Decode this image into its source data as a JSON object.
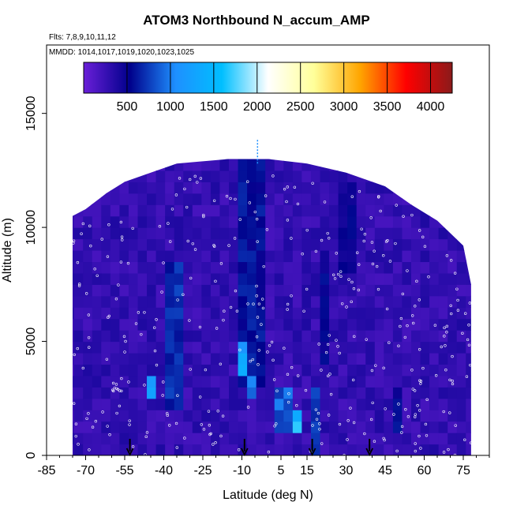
{
  "chart_data": {
    "type": "heatmap",
    "title": "ATOM3 Northbound N_accum_AMP",
    "flights_note": "Flts: 7,8,9,10,11,12",
    "mmdd_note": "MMDD: 1014,1017,1019,1020,1023,1025",
    "xlabel": "Latitude (deg N)",
    "ylabel": "Altitude (m)",
    "xlim": [
      -85,
      85
    ],
    "ylim": [
      0,
      18000
    ],
    "x_ticks": [
      -85,
      -70,
      -55,
      -40,
      -25,
      -10,
      5,
      15,
      30,
      45,
      60,
      75
    ],
    "y_ticks": [
      0,
      5000,
      10000,
      15000
    ],
    "colorbar": {
      "range": [
        0,
        4250
      ],
      "ticks": [
        500,
        1000,
        1500,
        2000,
        2500,
        3000,
        3500,
        4000
      ],
      "colors": [
        "#6a1fd8",
        "#00008b",
        "#1e90ff",
        "#00bfff",
        "#ffffff",
        "#ffff99",
        "#ffa500",
        "#ff0000",
        "#8b1a1a"
      ]
    },
    "coverage_top_profile": [
      {
        "lat": -75,
        "alt": 10500
      },
      {
        "lat": -70,
        "alt": 10800
      },
      {
        "lat": -62,
        "alt": 11500
      },
      {
        "lat": -55,
        "alt": 12000
      },
      {
        "lat": -45,
        "alt": 12400
      },
      {
        "lat": -35,
        "alt": 12800
      },
      {
        "lat": -15,
        "alt": 13000
      },
      {
        "lat": 0,
        "alt": 13000
      },
      {
        "lat": 15,
        "alt": 12800
      },
      {
        "lat": 30,
        "alt": 12400
      },
      {
        "lat": 45,
        "alt": 11800
      },
      {
        "lat": 55,
        "alt": 11000
      },
      {
        "lat": 65,
        "alt": 10300
      },
      {
        "lat": 75,
        "alt": 9200
      },
      {
        "lat": 78,
        "alt": 7500
      }
    ],
    "features": [
      {
        "lat_min": -47,
        "lat_max": -44,
        "alt_min": 2500,
        "alt_max": 3500,
        "value": 1400
      },
      {
        "lat_min": -38,
        "lat_max": -32,
        "alt_min": 2000,
        "alt_max": 8500,
        "value": 700
      },
      {
        "lat_min": -13,
        "lat_max": -2,
        "alt_min": 3000,
        "alt_max": 13000,
        "value": 600
      },
      {
        "lat_min": -13,
        "lat_max": -7,
        "alt_min": 3500,
        "alt_max": 5000,
        "value": 1250
      },
      {
        "lat_min": -7,
        "lat_max": -3,
        "alt_min": 2500,
        "alt_max": 3500,
        "value": 1000
      },
      {
        "lat_min": 3,
        "lat_max": 9,
        "alt_min": 1000,
        "alt_max": 3000,
        "value": 900
      },
      {
        "lat_min": 9,
        "lat_max": 13,
        "alt_min": 1000,
        "alt_max": 2200,
        "value": 1500
      },
      {
        "lat_min": 15,
        "lat_max": 20,
        "alt_min": 0,
        "alt_max": 3000,
        "value": 700
      },
      {
        "lat_min": 20,
        "lat_max": 25,
        "alt_min": 4000,
        "alt_max": 9000,
        "value": 550
      },
      {
        "lat_min": 28,
        "lat_max": 35,
        "alt_min": 8000,
        "alt_max": 12000,
        "value": 500
      },
      {
        "lat_min": 48,
        "lat_max": 52,
        "alt_min": 1000,
        "alt_max": 3000,
        "value": 550
      }
    ],
    "arrows": [
      {
        "lat": -53,
        "alt": 0
      },
      {
        "lat": -9,
        "alt": 0
      },
      {
        "lat": 17,
        "alt": 0
      },
      {
        "lat": 39,
        "alt": 0
      }
    ],
    "spike": {
      "lat": -4,
      "alt_min": 12800,
      "alt_max": 13900
    }
  }
}
